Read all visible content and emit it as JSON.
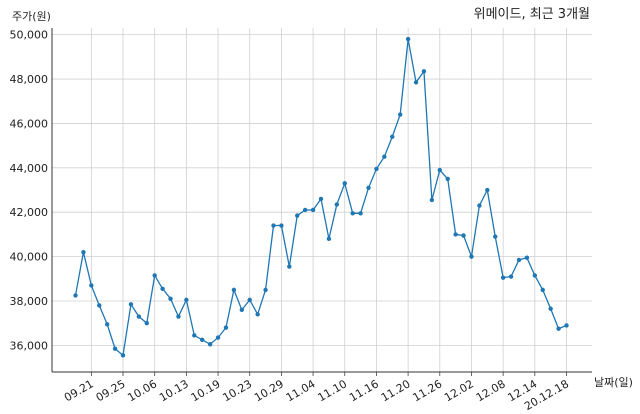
{
  "chart_data": {
    "type": "line",
    "title": "위메이드, 최근 3개월",
    "ylabel": "주가(원)",
    "xlabel": "날짜(일)",
    "ylim": [
      34800,
      50300
    ],
    "yticks": [
      36000,
      38000,
      40000,
      42000,
      44000,
      46000,
      48000,
      50000
    ],
    "ytick_labels": [
      "36,000",
      "38,000",
      "40,000",
      "42,000",
      "44,000",
      "46,000",
      "48,000",
      "50,000"
    ],
    "xtick_labels": [
      "09.21",
      "09.25",
      "10.06",
      "10.13",
      "10.19",
      "10.23",
      "10.29",
      "11.04",
      "11.10",
      "11.16",
      "11.20",
      "11.26",
      "12.02",
      "12.08",
      "12.14",
      "20.12.18"
    ],
    "xtick_index": [
      2,
      6,
      10,
      14,
      18,
      22,
      26,
      30,
      34,
      38,
      42,
      46,
      50,
      54,
      58,
      62
    ],
    "grid": true,
    "color": "#1f77b4",
    "series": [
      {
        "values": [
          38250,
          40200,
          38700,
          37800,
          36950,
          35850,
          35550,
          37850,
          37300,
          37000,
          39150,
          38550,
          38100,
          37300,
          38050,
          36450,
          36250,
          36050,
          36350,
          36800,
          38500,
          37600,
          38050,
          37400,
          38500,
          41400,
          41400,
          39550,
          41850,
          42100,
          42100,
          42600,
          40800,
          42350,
          43300,
          41950,
          41950,
          43100,
          43950,
          44500,
          45400,
          46400,
          49800,
          47850,
          48350,
          42550,
          43900,
          43500,
          41000,
          40950,
          40000,
          42300,
          43000,
          40900,
          39050,
          39100,
          39850,
          39950,
          39150,
          38500,
          37650,
          36750,
          36900
        ]
      }
    ]
  }
}
